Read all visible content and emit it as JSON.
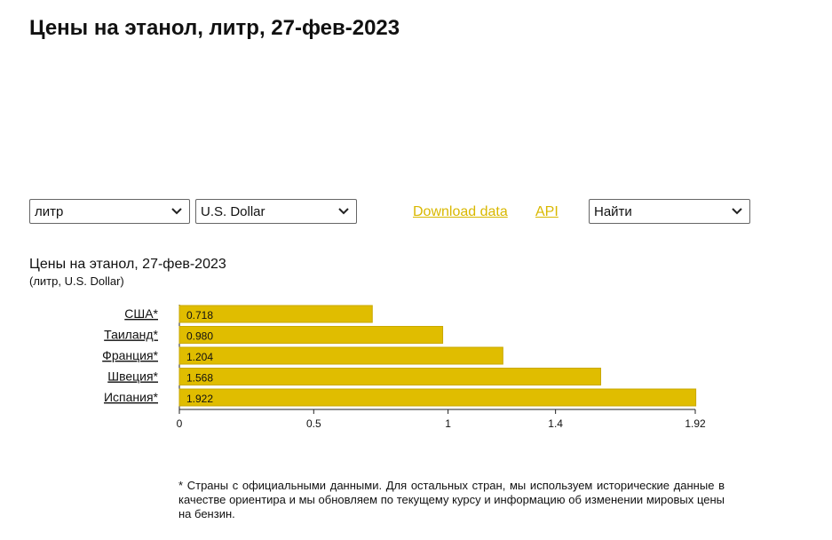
{
  "page_title": "Цены на этанол, литр, 27-фев-2023",
  "controls": {
    "unit_value": "литр",
    "currency_value": "U.S. Dollar",
    "download_label": "Download data",
    "api_label": "API",
    "find_value": "Найти"
  },
  "chart_heading": {
    "title": "Цены на этанол, 27-фев-2023",
    "subtitle": "(литр, U.S. Dollar)"
  },
  "colors": {
    "bar": "#e0bd00",
    "bar_stroke": "#c9a800",
    "link": "#d9b800"
  },
  "chart_data": {
    "type": "bar",
    "orientation": "horizontal",
    "categories": [
      "США*",
      "Таиланд*",
      "Франция*",
      "Швеция*",
      "Испания*"
    ],
    "values": [
      0.718,
      0.98,
      1.204,
      1.568,
      1.922
    ],
    "value_labels": [
      "0.718",
      "0.980",
      "1.204",
      "1.568",
      "1.922"
    ],
    "x_ticks": [
      0,
      0.5,
      1,
      1.4,
      1.92
    ],
    "x_tick_labels": [
      "0",
      "0.5",
      "1",
      "1.4",
      "1.92"
    ],
    "xlim": [
      0,
      1.92
    ],
    "grid": false
  },
  "footnote": "* Страны с официальными данными. Для остальных стран, мы используем исторические данные в качестве ориентира и мы обновляем по текущему курсу и информацию об изменении мировых цены на бензин."
}
